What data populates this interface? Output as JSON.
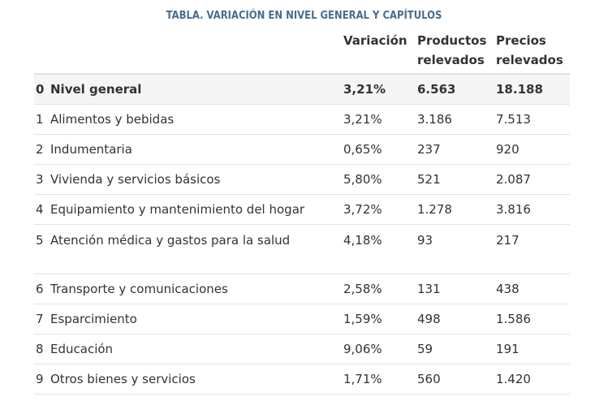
{
  "title": "TABLA. VARIACIÓN EN NIVEL GENERAL Y CAPÍTULOS",
  "headers": {
    "label": "",
    "variacion": "Variación",
    "productos": "Productos relevados",
    "precios": "Precios relevados"
  },
  "rows": [
    {
      "num": "0",
      "label": "Nivel general",
      "variacion": "3,21%",
      "productos": "6.563",
      "precios": "18.188"
    },
    {
      "num": "1",
      "label": "Alimentos y bebidas",
      "variacion": "3,21%",
      "productos": "3.186",
      "precios": "7.513"
    },
    {
      "num": "2",
      "label": "Indumentaria",
      "variacion": "0,65%",
      "productos": "237",
      "precios": "920"
    },
    {
      "num": "3",
      "label": "Vivienda y servicios básicos",
      "variacion": "5,80%",
      "productos": "521",
      "precios": "2.087"
    },
    {
      "num": "4",
      "label": "Equipamiento y mantenimiento del hogar",
      "variacion": "3,72%",
      "productos": "1.278",
      "precios": "3.816"
    },
    {
      "num": "5",
      "label": "Atención médica y gastos para la salud",
      "variacion": "4,18%",
      "productos": "93",
      "precios": "217"
    },
    {
      "num": "6",
      "label": "Transporte y comunicaciones",
      "variacion": "2,58%",
      "productos": "131",
      "precios": "438"
    },
    {
      "num": "7",
      "label": "Esparcimiento",
      "variacion": "1,59%",
      "productos": "498",
      "precios": "1.586"
    },
    {
      "num": "8",
      "label": "Educación",
      "variacion": "9,06%",
      "productos": "59",
      "precios": "191"
    },
    {
      "num": "9",
      "label": "Otros bienes y servicios",
      "variacion": "1,71%",
      "productos": "560",
      "precios": "1.420"
    }
  ]
}
